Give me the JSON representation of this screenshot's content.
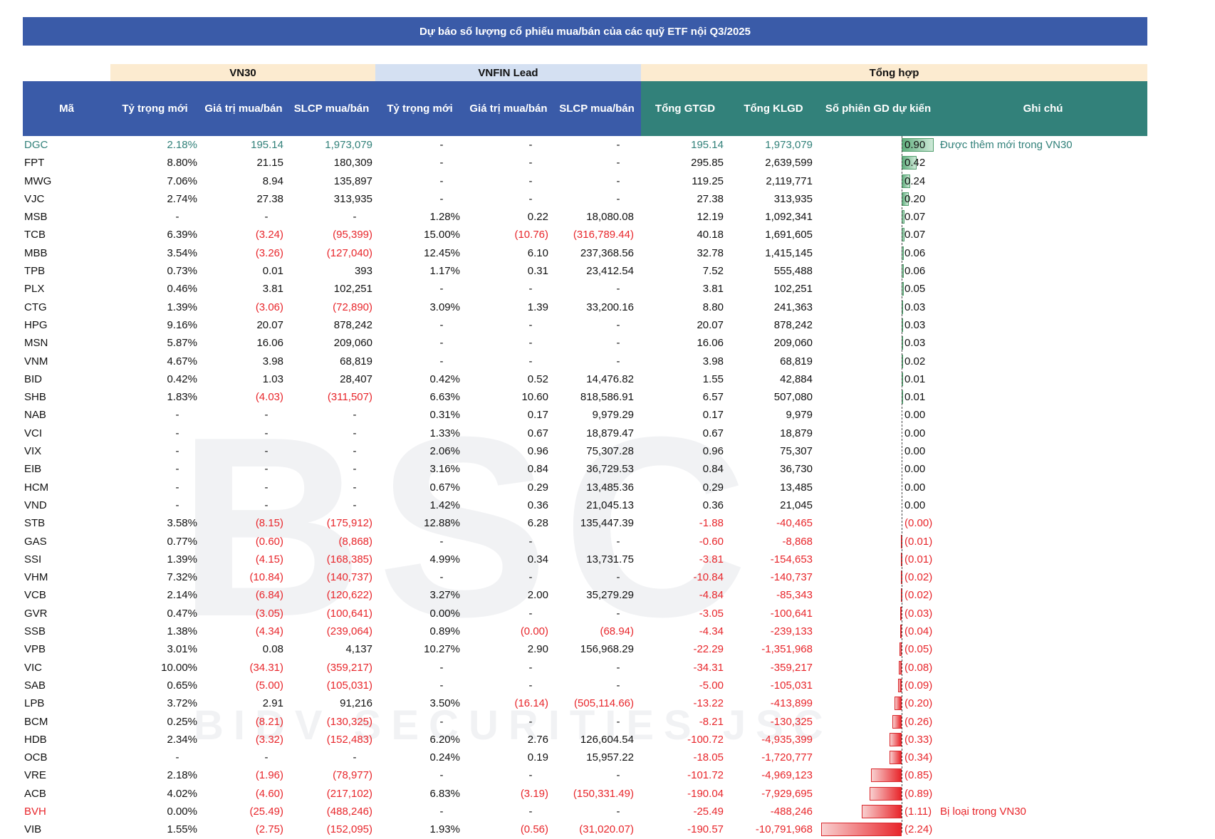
{
  "title": "Dự báo số lượng cổ phiếu mua/bán của các quỹ ETF nội Q3/2025",
  "groups": {
    "vn30": "VN30",
    "vnfin": "VNFIN Lead",
    "tong": "Tổng hợp"
  },
  "headers": {
    "ma": "Mã",
    "vn30_ty_trong": "Tỷ trọng mới",
    "vn30_gia_tri": "Giá trị mua/bán",
    "vn30_slcp": "SLCP mua/bán",
    "vnfin_ty_trong": "Tỷ trọng mới",
    "vnfin_gia_tri": "Giá trị mua/bán",
    "vnfin_slcp": "SLCP mua/bán",
    "tong_gtgd": "Tổng GTGD",
    "tong_klgd": "Tổng KLGD",
    "so_phien": "Số phiên GD dự kiến",
    "ghi_chu": "Ghi chú"
  },
  "colors": {
    "title_bg": "#3A5BA8",
    "header_blue": "#3A5BA8",
    "header_teal": "#32817A",
    "negative": "#E8262B",
    "highlight_teal": "#32817A",
    "group_peach": "#FCEBD0",
    "group_blue": "#D4E0F2"
  },
  "watermark": {
    "main": "BSC",
    "sub": "BIDV SECURITIES JSC"
  },
  "rows": [
    {
      "code": "DGC",
      "vn30_tt": "2.18%",
      "vn30_gt": "195.14",
      "vn30_sl": "1,973,079",
      "vf_tt": "-",
      "vf_gt": "-",
      "vf_sl": "-",
      "gtgd": "195.14",
      "klgd": "1,973,079",
      "sess_label": "0.90",
      "sess": 0.9,
      "note": "Được thêm mới trong VN30",
      "style": "teal"
    },
    {
      "code": "FPT",
      "vn30_tt": "8.80%",
      "vn30_gt": "21.15",
      "vn30_sl": "180,309",
      "vf_tt": "-",
      "vf_gt": "-",
      "vf_sl": "-",
      "gtgd": "295.85",
      "klgd": "2,639,599",
      "sess_label": "0.42",
      "sess": 0.42,
      "note": "",
      "style": ""
    },
    {
      "code": "MWG",
      "vn30_tt": "7.06%",
      "vn30_gt": "8.94",
      "vn30_sl": "135,897",
      "vf_tt": "-",
      "vf_gt": "-",
      "vf_sl": "-",
      "gtgd": "119.25",
      "klgd": "2,119,771",
      "sess_label": "0.24",
      "sess": 0.24,
      "note": "",
      "style": ""
    },
    {
      "code": "VJC",
      "vn30_tt": "2.74%",
      "vn30_gt": "27.38",
      "vn30_sl": "313,935",
      "vf_tt": "-",
      "vf_gt": "-",
      "vf_sl": "-",
      "gtgd": "27.38",
      "klgd": "313,935",
      "sess_label": "0.20",
      "sess": 0.2,
      "note": "",
      "style": ""
    },
    {
      "code": "MSB",
      "vn30_tt": "-",
      "vn30_gt": "-",
      "vn30_sl": "-",
      "vf_tt": "1.28%",
      "vf_gt": "0.22",
      "vf_sl": "18,080.08",
      "gtgd": "12.19",
      "klgd": "1,092,341",
      "sess_label": "0.07",
      "sess": 0.07,
      "note": "",
      "style": ""
    },
    {
      "code": "TCB",
      "vn30_tt": "6.39%",
      "vn30_gt": "(3.24)",
      "vn30_sl": "(95,399)",
      "vf_tt": "15.00%",
      "vf_gt": "(10.76)",
      "vf_sl": "(316,789.44)",
      "gtgd": "40.18",
      "klgd": "1,691,605",
      "sess_label": "0.07",
      "sess": 0.07,
      "note": "",
      "style": ""
    },
    {
      "code": "MBB",
      "vn30_tt": "3.54%",
      "vn30_gt": "(3.26)",
      "vn30_sl": "(127,040)",
      "vf_tt": "12.45%",
      "vf_gt": "6.10",
      "vf_sl": "237,368.56",
      "gtgd": "32.78",
      "klgd": "1,415,145",
      "sess_label": "0.06",
      "sess": 0.06,
      "note": "",
      "style": ""
    },
    {
      "code": "TPB",
      "vn30_tt": "0.73%",
      "vn30_gt": "0.01",
      "vn30_sl": "393",
      "vf_tt": "1.17%",
      "vf_gt": "0.31",
      "vf_sl": "23,412.54",
      "gtgd": "7.52",
      "klgd": "555,488",
      "sess_label": "0.06",
      "sess": 0.06,
      "note": "",
      "style": ""
    },
    {
      "code": "PLX",
      "vn30_tt": "0.46%",
      "vn30_gt": "3.81",
      "vn30_sl": "102,251",
      "vf_tt": "-",
      "vf_gt": "-",
      "vf_sl": "-",
      "gtgd": "3.81",
      "klgd": "102,251",
      "sess_label": "0.05",
      "sess": 0.05,
      "note": "",
      "style": ""
    },
    {
      "code": "CTG",
      "vn30_tt": "1.39%",
      "vn30_gt": "(3.06)",
      "vn30_sl": "(72,890)",
      "vf_tt": "3.09%",
      "vf_gt": "1.39",
      "vf_sl": "33,200.16",
      "gtgd": "8.80",
      "klgd": "241,363",
      "sess_label": "0.03",
      "sess": 0.03,
      "note": "",
      "style": ""
    },
    {
      "code": "HPG",
      "vn30_tt": "9.16%",
      "vn30_gt": "20.07",
      "vn30_sl": "878,242",
      "vf_tt": "-",
      "vf_gt": "-",
      "vf_sl": "-",
      "gtgd": "20.07",
      "klgd": "878,242",
      "sess_label": "0.03",
      "sess": 0.03,
      "note": "",
      "style": ""
    },
    {
      "code": "MSN",
      "vn30_tt": "5.87%",
      "vn30_gt": "16.06",
      "vn30_sl": "209,060",
      "vf_tt": "-",
      "vf_gt": "-",
      "vf_sl": "-",
      "gtgd": "16.06",
      "klgd": "209,060",
      "sess_label": "0.03",
      "sess": 0.03,
      "note": "",
      "style": ""
    },
    {
      "code": "VNM",
      "vn30_tt": "4.67%",
      "vn30_gt": "3.98",
      "vn30_sl": "68,819",
      "vf_tt": "-",
      "vf_gt": "-",
      "vf_sl": "-",
      "gtgd": "3.98",
      "klgd": "68,819",
      "sess_label": "0.02",
      "sess": 0.02,
      "note": "",
      "style": ""
    },
    {
      "code": "BID",
      "vn30_tt": "0.42%",
      "vn30_gt": "1.03",
      "vn30_sl": "28,407",
      "vf_tt": "0.42%",
      "vf_gt": "0.52",
      "vf_sl": "14,476.82",
      "gtgd": "1.55",
      "klgd": "42,884",
      "sess_label": "0.01",
      "sess": 0.01,
      "note": "",
      "style": ""
    },
    {
      "code": "SHB",
      "vn30_tt": "1.83%",
      "vn30_gt": "(4.03)",
      "vn30_sl": "(311,507)",
      "vf_tt": "6.63%",
      "vf_gt": "10.60",
      "vf_sl": "818,586.91",
      "gtgd": "6.57",
      "klgd": "507,080",
      "sess_label": "0.01",
      "sess": 0.01,
      "note": "",
      "style": ""
    },
    {
      "code": "NAB",
      "vn30_tt": "-",
      "vn30_gt": "-",
      "vn30_sl": "-",
      "vf_tt": "0.31%",
      "vf_gt": "0.17",
      "vf_sl": "9,979.29",
      "gtgd": "0.17",
      "klgd": "9,979",
      "sess_label": "0.00",
      "sess": 0.0,
      "note": "",
      "style": ""
    },
    {
      "code": "VCI",
      "vn30_tt": "-",
      "vn30_gt": "-",
      "vn30_sl": "-",
      "vf_tt": "1.33%",
      "vf_gt": "0.67",
      "vf_sl": "18,879.47",
      "gtgd": "0.67",
      "klgd": "18,879",
      "sess_label": "0.00",
      "sess": 0.0,
      "note": "",
      "style": ""
    },
    {
      "code": "VIX",
      "vn30_tt": "-",
      "vn30_gt": "-",
      "vn30_sl": "-",
      "vf_tt": "2.06%",
      "vf_gt": "0.96",
      "vf_sl": "75,307.28",
      "gtgd": "0.96",
      "klgd": "75,307",
      "sess_label": "0.00",
      "sess": 0.0,
      "note": "",
      "style": ""
    },
    {
      "code": "EIB",
      "vn30_tt": "-",
      "vn30_gt": "-",
      "vn30_sl": "-",
      "vf_tt": "3.16%",
      "vf_gt": "0.84",
      "vf_sl": "36,729.53",
      "gtgd": "0.84",
      "klgd": "36,730",
      "sess_label": "0.00",
      "sess": 0.0,
      "note": "",
      "style": ""
    },
    {
      "code": "HCM",
      "vn30_tt": "-",
      "vn30_gt": "-",
      "vn30_sl": "-",
      "vf_tt": "0.67%",
      "vf_gt": "0.29",
      "vf_sl": "13,485.36",
      "gtgd": "0.29",
      "klgd": "13,485",
      "sess_label": "0.00",
      "sess": 0.0,
      "note": "",
      "style": ""
    },
    {
      "code": "VND",
      "vn30_tt": "-",
      "vn30_gt": "-",
      "vn30_sl": "-",
      "vf_tt": "1.42%",
      "vf_gt": "0.36",
      "vf_sl": "21,045.13",
      "gtgd": "0.36",
      "klgd": "21,045",
      "sess_label": "0.00",
      "sess": 0.0,
      "note": "",
      "style": ""
    },
    {
      "code": "STB",
      "vn30_tt": "3.58%",
      "vn30_gt": "(8.15)",
      "vn30_sl": "(175,912)",
      "vf_tt": "12.88%",
      "vf_gt": "6.28",
      "vf_sl": "135,447.39",
      "gtgd": "-1.88",
      "klgd": "-40,465",
      "sess_label": "(0.00)",
      "sess": 0.0,
      "note": "",
      "style": ""
    },
    {
      "code": "GAS",
      "vn30_tt": "0.77%",
      "vn30_gt": "(0.60)",
      "vn30_sl": "(8,868)",
      "vf_tt": "-",
      "vf_gt": "-",
      "vf_sl": "-",
      "gtgd": "-0.60",
      "klgd": "-8,868",
      "sess_label": "(0.01)",
      "sess": -0.01,
      "note": "",
      "style": ""
    },
    {
      "code": "SSI",
      "vn30_tt": "1.39%",
      "vn30_gt": "(4.15)",
      "vn30_sl": "(168,385)",
      "vf_tt": "4.99%",
      "vf_gt": "0.34",
      "vf_sl": "13,731.75",
      "gtgd": "-3.81",
      "klgd": "-154,653",
      "sess_label": "(0.01)",
      "sess": -0.01,
      "note": "",
      "style": ""
    },
    {
      "code": "VHM",
      "vn30_tt": "7.32%",
      "vn30_gt": "(10.84)",
      "vn30_sl": "(140,737)",
      "vf_tt": "-",
      "vf_gt": "-",
      "vf_sl": "-",
      "gtgd": "-10.84",
      "klgd": "-140,737",
      "sess_label": "(0.02)",
      "sess": -0.02,
      "note": "",
      "style": ""
    },
    {
      "code": "VCB",
      "vn30_tt": "2.14%",
      "vn30_gt": "(6.84)",
      "vn30_sl": "(120,622)",
      "vf_tt": "3.27%",
      "vf_gt": "2.00",
      "vf_sl": "35,279.29",
      "gtgd": "-4.84",
      "klgd": "-85,343",
      "sess_label": "(0.02)",
      "sess": -0.02,
      "note": "",
      "style": ""
    },
    {
      "code": "GVR",
      "vn30_tt": "0.47%",
      "vn30_gt": "(3.05)",
      "vn30_sl": "(100,641)",
      "vf_tt": "0.00%",
      "vf_gt": "-",
      "vf_sl": "-",
      "gtgd": "-3.05",
      "klgd": "-100,641",
      "sess_label": "(0.03)",
      "sess": -0.03,
      "note": "",
      "style": ""
    },
    {
      "code": "SSB",
      "vn30_tt": "1.38%",
      "vn30_gt": "(4.34)",
      "vn30_sl": "(239,064)",
      "vf_tt": "0.89%",
      "vf_gt": "(0.00)",
      "vf_sl": "(68.94)",
      "gtgd": "-4.34",
      "klgd": "-239,133",
      "sess_label": "(0.04)",
      "sess": -0.04,
      "note": "",
      "style": ""
    },
    {
      "code": "VPB",
      "vn30_tt": "3.01%",
      "vn30_gt": "0.08",
      "vn30_sl": "4,137",
      "vf_tt": "10.27%",
      "vf_gt": "2.90",
      "vf_sl": "156,968.29",
      "gtgd": "-22.29",
      "klgd": "-1,351,968",
      "sess_label": "(0.05)",
      "sess": -0.05,
      "note": "",
      "style": ""
    },
    {
      "code": "VIC",
      "vn30_tt": "10.00%",
      "vn30_gt": "(34.31)",
      "vn30_sl": "(359,217)",
      "vf_tt": "-",
      "vf_gt": "-",
      "vf_sl": "-",
      "gtgd": "-34.31",
      "klgd": "-359,217",
      "sess_label": "(0.08)",
      "sess": -0.08,
      "note": "",
      "style": ""
    },
    {
      "code": "SAB",
      "vn30_tt": "0.65%",
      "vn30_gt": "(5.00)",
      "vn30_sl": "(105,031)",
      "vf_tt": "-",
      "vf_gt": "-",
      "vf_sl": "-",
      "gtgd": "-5.00",
      "klgd": "-105,031",
      "sess_label": "(0.09)",
      "sess": -0.09,
      "note": "",
      "style": ""
    },
    {
      "code": "LPB",
      "vn30_tt": "3.72%",
      "vn30_gt": "2.91",
      "vn30_sl": "91,216",
      "vf_tt": "3.50%",
      "vf_gt": "(16.14)",
      "vf_sl": "(505,114.66)",
      "gtgd": "-13.22",
      "klgd": "-413,899",
      "sess_label": "(0.20)",
      "sess": -0.2,
      "note": "",
      "style": ""
    },
    {
      "code": "BCM",
      "vn30_tt": "0.25%",
      "vn30_gt": "(8.21)",
      "vn30_sl": "(130,325)",
      "vf_tt": "-",
      "vf_gt": "-",
      "vf_sl": "-",
      "gtgd": "-8.21",
      "klgd": "-130,325",
      "sess_label": "(0.26)",
      "sess": -0.26,
      "note": "",
      "style": ""
    },
    {
      "code": "HDB",
      "vn30_tt": "2.34%",
      "vn30_gt": "(3.32)",
      "vn30_sl": "(152,483)",
      "vf_tt": "6.20%",
      "vf_gt": "2.76",
      "vf_sl": "126,604.54",
      "gtgd": "-100.72",
      "klgd": "-4,935,399",
      "sess_label": "(0.33)",
      "sess": -0.33,
      "note": "",
      "style": ""
    },
    {
      "code": "OCB",
      "vn30_tt": "-",
      "vn30_gt": "-",
      "vn30_sl": "-",
      "vf_tt": "0.24%",
      "vf_gt": "0.19",
      "vf_sl": "15,957.22",
      "gtgd": "-18.05",
      "klgd": "-1,720,777",
      "sess_label": "(0.34)",
      "sess": -0.34,
      "note": "",
      "style": ""
    },
    {
      "code": "VRE",
      "vn30_tt": "2.18%",
      "vn30_gt": "(1.96)",
      "vn30_sl": "(78,977)",
      "vf_tt": "-",
      "vf_gt": "-",
      "vf_sl": "-",
      "gtgd": "-101.72",
      "klgd": "-4,969,123",
      "sess_label": "(0.85)",
      "sess": -0.85,
      "note": "",
      "style": ""
    },
    {
      "code": "ACB",
      "vn30_tt": "4.02%",
      "vn30_gt": "(4.60)",
      "vn30_sl": "(217,102)",
      "vf_tt": "6.83%",
      "vf_gt": "(3.19)",
      "vf_sl": "(150,331.49)",
      "gtgd": "-190.04",
      "klgd": "-7,929,695",
      "sess_label": "(0.89)",
      "sess": -0.89,
      "note": "",
      "style": ""
    },
    {
      "code": "BVH",
      "vn30_tt": "0.00%",
      "vn30_gt": "(25.49)",
      "vn30_sl": "(488,246)",
      "vf_tt": "-",
      "vf_gt": "-",
      "vf_sl": "-",
      "gtgd": "-25.49",
      "klgd": "-488,246",
      "sess_label": "(1.11)",
      "sess": -1.11,
      "note": "Bị loại trong VN30",
      "style": "red"
    },
    {
      "code": "VIB",
      "vn30_tt": "1.55%",
      "vn30_gt": "(2.75)",
      "vn30_sl": "(152,095)",
      "vf_tt": "1.93%",
      "vf_gt": "(0.56)",
      "vf_sl": "(31,020.07)",
      "gtgd": "-190.57",
      "klgd": "-10,791,968",
      "sess_label": "(2.24)",
      "sess": -2.24,
      "note": "",
      "style": ""
    }
  ]
}
